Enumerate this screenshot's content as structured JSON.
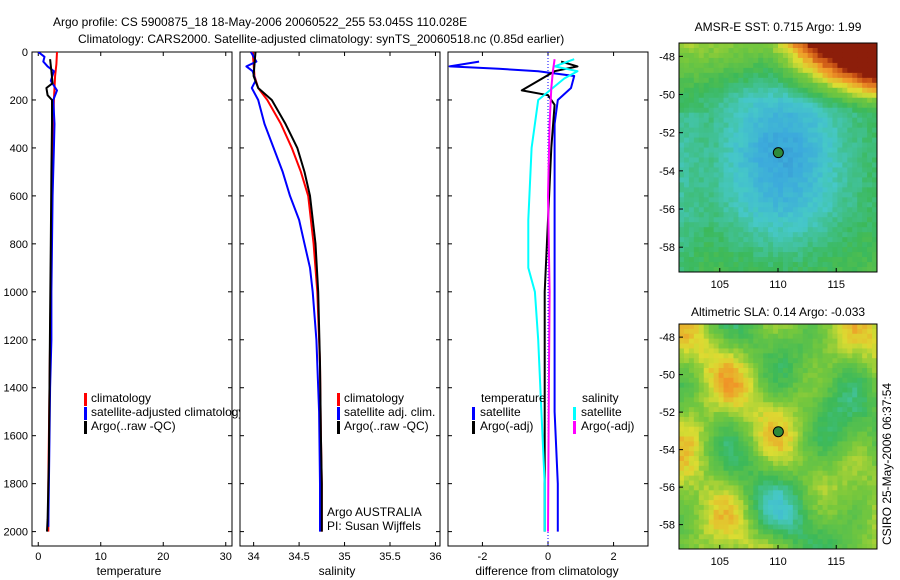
{
  "title_line1": "Argo profile: CS 5900875_18 18-May-2006 20060522_255 53.045S 110.028E",
  "title_line2": "Climatology: CARS2000. Satellite-adjusted climatology: synTS_20060518.nc (0.85d earlier)",
  "timestamp": "CSIRO 25-May-2006 06:37:54",
  "colors": {
    "red": "#ff0000",
    "blue": "#0000ff",
    "black": "#000000",
    "cyan": "#00ffff",
    "magenta": "#ff00ff"
  },
  "chart_data": [
    {
      "type": "line",
      "name": "temperature",
      "xlabel": "temperature",
      "xlim": [
        -1,
        31
      ],
      "xticks": [
        0,
        10,
        20,
        30
      ],
      "ylim": [
        2060,
        0
      ],
      "yticks": [
        0,
        200,
        400,
        600,
        800,
        1000,
        1200,
        1400,
        1600,
        1800,
        2000
      ],
      "legend": [
        "climatology",
        "satellite-adjusted climatology",
        "Argo(..raw -QC)"
      ],
      "series": [
        {
          "name": "climatology",
          "color": "red",
          "points": [
            [
              3.0,
              0
            ],
            [
              2.9,
              50
            ],
            [
              2.7,
              100
            ],
            [
              2.5,
              200
            ],
            [
              2.4,
              300
            ],
            [
              2.3,
              400
            ],
            [
              2.2,
              600
            ],
            [
              2.1,
              800
            ],
            [
              2.0,
              1000
            ],
            [
              1.9,
              1200
            ],
            [
              1.8,
              1400
            ],
            [
              1.7,
              1600
            ],
            [
              1.6,
              1800
            ],
            [
              1.6,
              2000
            ]
          ]
        },
        {
          "name": "satellite-adjusted climatology",
          "color": "blue",
          "points": [
            [
              0.0,
              0
            ],
            [
              1.0,
              20
            ],
            [
              0.8,
              40
            ],
            [
              1.5,
              60
            ],
            [
              2.5,
              80
            ],
            [
              2.0,
              120
            ],
            [
              3.0,
              160
            ],
            [
              2.4,
              200
            ],
            [
              2.6,
              300
            ],
            [
              2.5,
              400
            ],
            [
              2.3,
              600
            ],
            [
              2.2,
              800
            ],
            [
              2.1,
              1000
            ],
            [
              2.1,
              1200
            ],
            [
              1.9,
              1400
            ],
            [
              1.8,
              1600
            ],
            [
              1.7,
              1800
            ],
            [
              1.6,
              1980
            ]
          ]
        },
        {
          "name": "Argo(..raw -QC)",
          "color": "black",
          "points": [
            [
              1.9,
              30
            ],
            [
              2.1,
              80
            ],
            [
              2.3,
              130
            ],
            [
              1.3,
              150
            ],
            [
              1.5,
              180
            ],
            [
              2.2,
              200
            ],
            [
              2.2,
              300
            ],
            [
              2.1,
              500
            ],
            [
              2.0,
              800
            ],
            [
              1.9,
              1100
            ],
            [
              1.8,
              1400
            ],
            [
              1.7,
              1700
            ],
            [
              1.5,
              1950
            ],
            [
              1.4,
              2000
            ]
          ]
        }
      ]
    },
    {
      "type": "line",
      "name": "salinity",
      "xlabel": "salinity",
      "xlim": [
        33.85,
        36.05
      ],
      "xticks": [
        34,
        34.5,
        35,
        35.5,
        36
      ],
      "xticklabels": [
        "34",
        "34.5",
        "35",
        "35.5",
        "36"
      ],
      "ylim": [
        2060,
        0
      ],
      "legend": [
        "climatology",
        "satellite adj. clim.",
        "Argo(..raw -QC)"
      ],
      "annotations": [
        "Argo AUSTRALIA",
        "PI: Susan Wijffels"
      ],
      "series": [
        {
          "name": "climatology",
          "color": "red",
          "points": [
            [
              33.99,
              0
            ],
            [
              34.0,
              50
            ],
            [
              34.01,
              100
            ],
            [
              34.05,
              150
            ],
            [
              34.15,
              200
            ],
            [
              34.3,
              300
            ],
            [
              34.42,
              400
            ],
            [
              34.52,
              500
            ],
            [
              34.6,
              600
            ],
            [
              34.66,
              800
            ],
            [
              34.7,
              1000
            ],
            [
              34.73,
              1300
            ],
            [
              34.74,
              1600
            ],
            [
              34.75,
              1800
            ],
            [
              34.75,
              2000
            ]
          ]
        },
        {
          "name": "satellite adj. clim.",
          "color": "blue",
          "points": [
            [
              33.97,
              0
            ],
            [
              34.03,
              40
            ],
            [
              33.92,
              60
            ],
            [
              33.99,
              80
            ],
            [
              34.02,
              120
            ],
            [
              33.98,
              150
            ],
            [
              34.05,
              200
            ],
            [
              34.12,
              300
            ],
            [
              34.22,
              400
            ],
            [
              34.32,
              500
            ],
            [
              34.4,
              600
            ],
            [
              34.5,
              700
            ],
            [
              34.56,
              800
            ],
            [
              34.62,
              900
            ],
            [
              34.65,
              1000
            ],
            [
              34.69,
              1200
            ],
            [
              34.72,
              1500
            ],
            [
              34.73,
              1800
            ],
            [
              34.73,
              2000
            ]
          ]
        },
        {
          "name": "Argo(..raw -QC)",
          "color": "black",
          "points": [
            [
              34.02,
              0
            ],
            [
              34.01,
              50
            ],
            [
              34.0,
              100
            ],
            [
              34.05,
              150
            ],
            [
              34.2,
              200
            ],
            [
              34.35,
              300
            ],
            [
              34.48,
              400
            ],
            [
              34.56,
              500
            ],
            [
              34.62,
              600
            ],
            [
              34.68,
              800
            ],
            [
              34.71,
              1000
            ],
            [
              34.73,
              1300
            ],
            [
              34.74,
              1600
            ],
            [
              34.75,
              1800
            ],
            [
              34.75,
              2000
            ]
          ]
        }
      ]
    },
    {
      "type": "line",
      "name": "difference",
      "xlabel": "difference from climatology",
      "xlim": [
        -3.05,
        3.05
      ],
      "xticks": [
        -2,
        0,
        2
      ],
      "ylim": [
        2060,
        0
      ],
      "legend": {
        "temperature_title": "temperature",
        "salinity_title": "salinity",
        "satellite": "satellite",
        "argo": "Argo(-adj)"
      },
      "series": [
        {
          "name": "temperature satellite",
          "color": "blue",
          "points": [
            [
              -2.1,
              40
            ],
            [
              -3.0,
              60
            ],
            [
              -1.5,
              70
            ],
            [
              -0.3,
              80
            ],
            [
              0.8,
              100
            ],
            [
              0.7,
              150
            ],
            [
              0.3,
              200
            ],
            [
              0.2,
              300
            ],
            [
              0.2,
              500
            ],
            [
              0.2,
              800
            ],
            [
              0.2,
              1000
            ],
            [
              0.2,
              1500
            ],
            [
              0.3,
              1800
            ],
            [
              0.3,
              2000
            ]
          ]
        },
        {
          "name": "temperature Argo(-adj)",
          "color": "black",
          "points": [
            [
              0.4,
              40
            ],
            [
              0.9,
              60
            ],
            [
              0.2,
              80
            ],
            [
              -0.8,
              160
            ],
            [
              0.0,
              180
            ],
            [
              0.2,
              220
            ],
            [
              0.1,
              400
            ],
            [
              0.0,
              700
            ],
            [
              -0.1,
              1000
            ],
            [
              -0.1,
              1300
            ],
            [
              -0.1,
              1600
            ],
            [
              -0.1,
              2000
            ]
          ]
        },
        {
          "name": "salinity satellite",
          "color": "cyan",
          "points": [
            [
              0.8,
              30
            ],
            [
              0.2,
              60
            ],
            [
              0.9,
              80
            ],
            [
              0.5,
              110
            ],
            [
              -0.3,
              200
            ],
            [
              -0.5,
              400
            ],
            [
              -0.6,
              700
            ],
            [
              -0.6,
              900
            ],
            [
              -0.4,
              1000
            ],
            [
              -0.3,
              1200
            ],
            [
              -0.2,
              1500
            ],
            [
              -0.1,
              1800
            ],
            [
              -0.1,
              2000
            ]
          ]
        },
        {
          "name": "salinity Argo(-adj)",
          "color": "magenta",
          "points": [
            [
              0.2,
              30
            ],
            [
              0.15,
              80
            ],
            [
              0.1,
              150
            ],
            [
              0.05,
              300
            ],
            [
              0.0,
              600
            ],
            [
              0.05,
              1000
            ],
            [
              0.02,
              1500
            ],
            [
              0.0,
              2000
            ]
          ]
        }
      ]
    },
    {
      "type": "heatmap",
      "name": "sst_map",
      "title": "AMSR-E SST: 0.715 Argo: 1.99",
      "xlim": [
        101.5,
        118.5
      ],
      "ylim": [
        -59.3,
        -47.3
      ],
      "xticks": [
        105,
        110,
        115
      ],
      "yticks": [
        -48,
        -50,
        -52,
        -54,
        -56,
        -58
      ],
      "marker": {
        "lon": 110.028,
        "lat": -53.045
      }
    },
    {
      "type": "heatmap",
      "name": "sla_map",
      "title": "Altimetric SLA: 0.14 Argo: -0.033",
      "xlim": [
        101.5,
        118.5
      ],
      "ylim": [
        -59.3,
        -47.3
      ],
      "xticks": [
        105,
        110,
        115
      ],
      "yticks": [
        -48,
        -50,
        -52,
        -54,
        -56,
        -58
      ],
      "marker": {
        "lon": 110.028,
        "lat": -53.045
      }
    }
  ]
}
